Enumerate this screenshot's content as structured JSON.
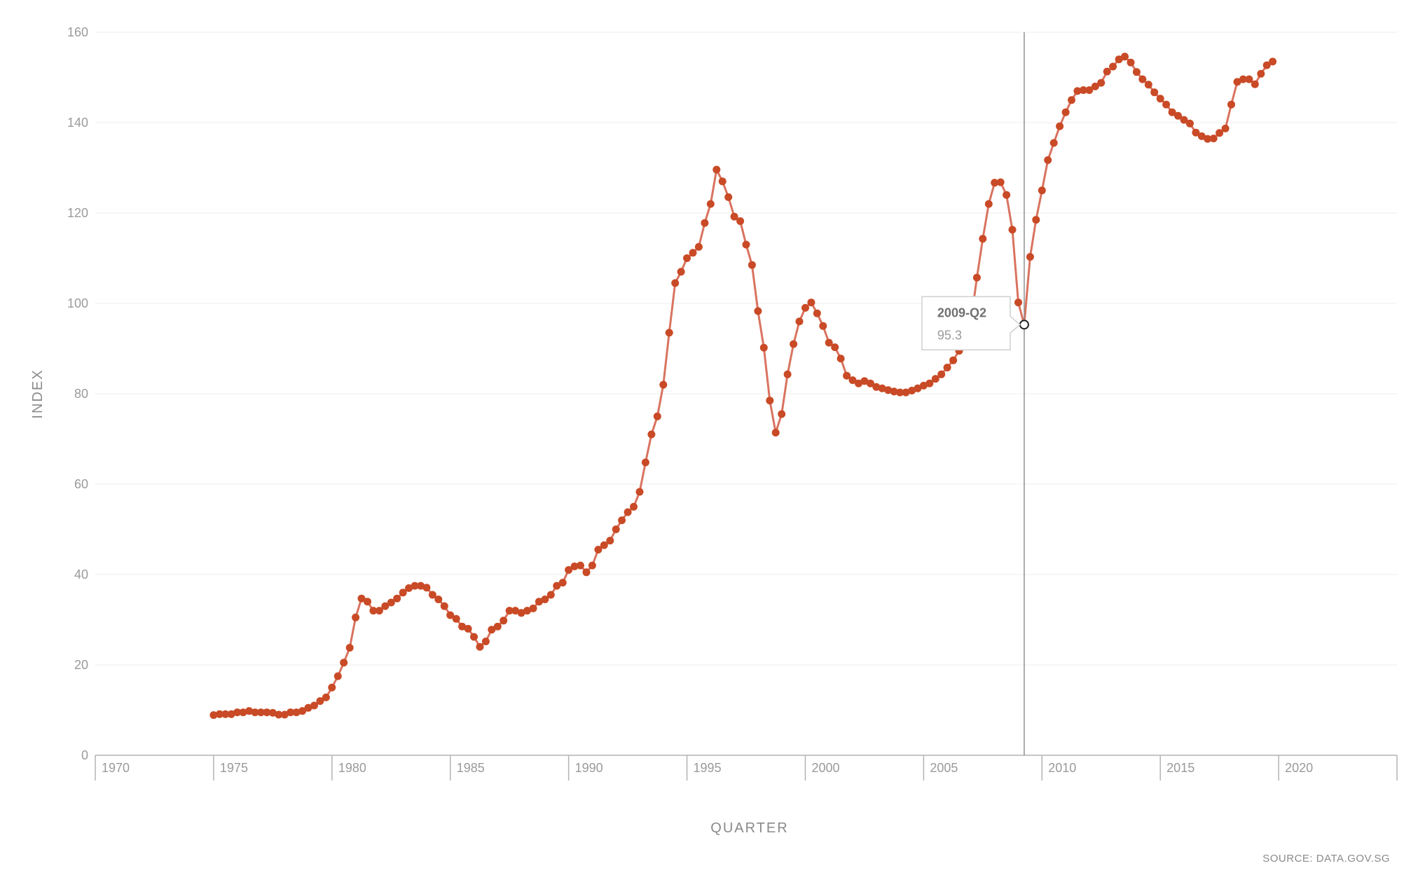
{
  "chart_data": {
    "type": "line",
    "xlabel": "QUARTER",
    "ylabel": "INDEX",
    "source": "SOURCE: DATA.GOV.SG",
    "xlim": [
      1970,
      2025
    ],
    "ylim": [
      0,
      160
    ],
    "xticks": [
      "1970",
      "1975",
      "1980",
      "1985",
      "1990",
      "1995",
      "2000",
      "2005",
      "2010",
      "2015",
      "2020"
    ],
    "yticks": [
      "0",
      "20",
      "40",
      "60",
      "80",
      "100",
      "120",
      "140",
      "160"
    ],
    "grid": true,
    "line_color": "#d9735f",
    "marker_color": "#c94a26",
    "series": [
      {
        "x": [
          "1975-Q1",
          "1975-Q2",
          "1975-Q3",
          "1975-Q4",
          "1976-Q1",
          "1976-Q2",
          "1976-Q3",
          "1976-Q4",
          "1977-Q1",
          "1977-Q2",
          "1977-Q3",
          "1977-Q4",
          "1978-Q1",
          "1978-Q2",
          "1978-Q3",
          "1978-Q4",
          "1979-Q1",
          "1979-Q2",
          "1979-Q3",
          "1979-Q4",
          "1980-Q1",
          "1980-Q2",
          "1980-Q3",
          "1980-Q4",
          "1981-Q1",
          "1981-Q2",
          "1981-Q3",
          "1981-Q4",
          "1982-Q1",
          "1982-Q2",
          "1982-Q3",
          "1982-Q4",
          "1983-Q1",
          "1983-Q2",
          "1983-Q3",
          "1983-Q4",
          "1984-Q1",
          "1984-Q2",
          "1984-Q3",
          "1984-Q4",
          "1985-Q1",
          "1985-Q2",
          "1985-Q3",
          "1985-Q4",
          "1986-Q1",
          "1986-Q2",
          "1986-Q3",
          "1986-Q4",
          "1987-Q1",
          "1987-Q2",
          "1987-Q3",
          "1987-Q4",
          "1988-Q1",
          "1988-Q2",
          "1988-Q3",
          "1988-Q4",
          "1989-Q1",
          "1989-Q2",
          "1989-Q3",
          "1989-Q4",
          "1990-Q1",
          "1990-Q2",
          "1990-Q3",
          "1990-Q4",
          "1991-Q1",
          "1991-Q2",
          "1991-Q3",
          "1991-Q4",
          "1992-Q1",
          "1992-Q2",
          "1992-Q3",
          "1992-Q4",
          "1993-Q1",
          "1993-Q2",
          "1993-Q3",
          "1993-Q4",
          "1994-Q1",
          "1994-Q2",
          "1994-Q3",
          "1994-Q4",
          "1995-Q1",
          "1995-Q2",
          "1995-Q3",
          "1995-Q4",
          "1996-Q1",
          "1996-Q2",
          "1996-Q3",
          "1996-Q4",
          "1997-Q1",
          "1997-Q2",
          "1997-Q3",
          "1997-Q4",
          "1998-Q1",
          "1998-Q2",
          "1998-Q3",
          "1998-Q4",
          "1999-Q1",
          "1999-Q2",
          "1999-Q3",
          "1999-Q4",
          "2000-Q1",
          "2000-Q2",
          "2000-Q3",
          "2000-Q4",
          "2001-Q1",
          "2001-Q2",
          "2001-Q3",
          "2001-Q4",
          "2002-Q1",
          "2002-Q2",
          "2002-Q3",
          "2002-Q4",
          "2003-Q1",
          "2003-Q2",
          "2003-Q3",
          "2003-Q4",
          "2004-Q1",
          "2004-Q2",
          "2004-Q3",
          "2004-Q4",
          "2005-Q1",
          "2005-Q2",
          "2005-Q3",
          "2005-Q4",
          "2006-Q1",
          "2006-Q2",
          "2006-Q3",
          "2006-Q4",
          "2007-Q1",
          "2007-Q2",
          "2007-Q3",
          "2007-Q4",
          "2008-Q1",
          "2008-Q2",
          "2008-Q3",
          "2008-Q4",
          "2009-Q1",
          "2009-Q2",
          "2009-Q3",
          "2009-Q4",
          "2010-Q1",
          "2010-Q2",
          "2010-Q3",
          "2010-Q4",
          "2011-Q1",
          "2011-Q2",
          "2011-Q3",
          "2011-Q4",
          "2012-Q1",
          "2012-Q2",
          "2012-Q3",
          "2012-Q4",
          "2013-Q1",
          "2013-Q2",
          "2013-Q3",
          "2013-Q4",
          "2014-Q1",
          "2014-Q2",
          "2014-Q3",
          "2014-Q4",
          "2015-Q1",
          "2015-Q2",
          "2015-Q3",
          "2015-Q4",
          "2016-Q1",
          "2016-Q2",
          "2016-Q3",
          "2016-Q4",
          "2017-Q1",
          "2017-Q2",
          "2017-Q3",
          "2017-Q4",
          "2018-Q1",
          "2018-Q2",
          "2018-Q3",
          "2018-Q4",
          "2019-Q1",
          "2019-Q2",
          "2019-Q3",
          "2019-Q4"
        ],
        "values": [
          8.9,
          9.1,
          9.1,
          9.1,
          9.5,
          9.5,
          9.8,
          9.5,
          9.5,
          9.5,
          9.4,
          9.0,
          9.0,
          9.5,
          9.5,
          9.8,
          10.5,
          11.0,
          12.0,
          12.8,
          15.0,
          17.5,
          20.5,
          23.8,
          30.5,
          34.7,
          34.0,
          32.0,
          32.0,
          33.0,
          33.8,
          34.7,
          36.0,
          37.0,
          37.5,
          37.5,
          37.1,
          35.5,
          34.5,
          33.0,
          31.0,
          30.2,
          28.5,
          28.0,
          26.2,
          24.0,
          25.2,
          27.8,
          28.5,
          29.8,
          32.0,
          32.0,
          31.5,
          32.0,
          32.5,
          34.0,
          34.5,
          35.5,
          37.5,
          38.2,
          41.0,
          41.8,
          42.0,
          40.5,
          42.0,
          45.5,
          46.5,
          47.5,
          50.0,
          52.0,
          53.8,
          55.0,
          58.3,
          64.8,
          71.0,
          75.0,
          82.0,
          93.5,
          104.5,
          107.0,
          110.0,
          111.2,
          112.5,
          117.8,
          122.0,
          129.6,
          127.0,
          123.5,
          119.2,
          118.2,
          113.0,
          108.5,
          98.3,
          90.2,
          78.5,
          71.4,
          75.5,
          84.3,
          91.0,
          96.0,
          99.0,
          100.2,
          97.8,
          95.0,
          91.3,
          90.3,
          87.8,
          84.0,
          83.0,
          82.3,
          82.8,
          82.3,
          81.5,
          81.2,
          80.8,
          80.5,
          80.3,
          80.3,
          80.7,
          81.2,
          81.8,
          82.3,
          83.3,
          84.3,
          85.8,
          87.4,
          89.5,
          92.5,
          96.0,
          105.7,
          114.3,
          122.0,
          126.7,
          126.8,
          124.0,
          116.3,
          100.2,
          95.3,
          110.3,
          118.5,
          125.0,
          131.7,
          135.5,
          139.2,
          142.3,
          145.0,
          147.0,
          147.2,
          147.2,
          148.0,
          148.8,
          151.3,
          152.4,
          154.0,
          154.6,
          153.3,
          151.2,
          149.6,
          148.4,
          146.7,
          145.3,
          144.0,
          142.3,
          141.5,
          140.6,
          139.8,
          137.8,
          137.0,
          136.4,
          136.5,
          137.7,
          138.7,
          144.0,
          149.0,
          149.6,
          149.6,
          148.5,
          150.8,
          152.7,
          153.5
        ]
      }
    ],
    "tooltip": {
      "label": "2009-Q2",
      "value": "95.3"
    }
  }
}
